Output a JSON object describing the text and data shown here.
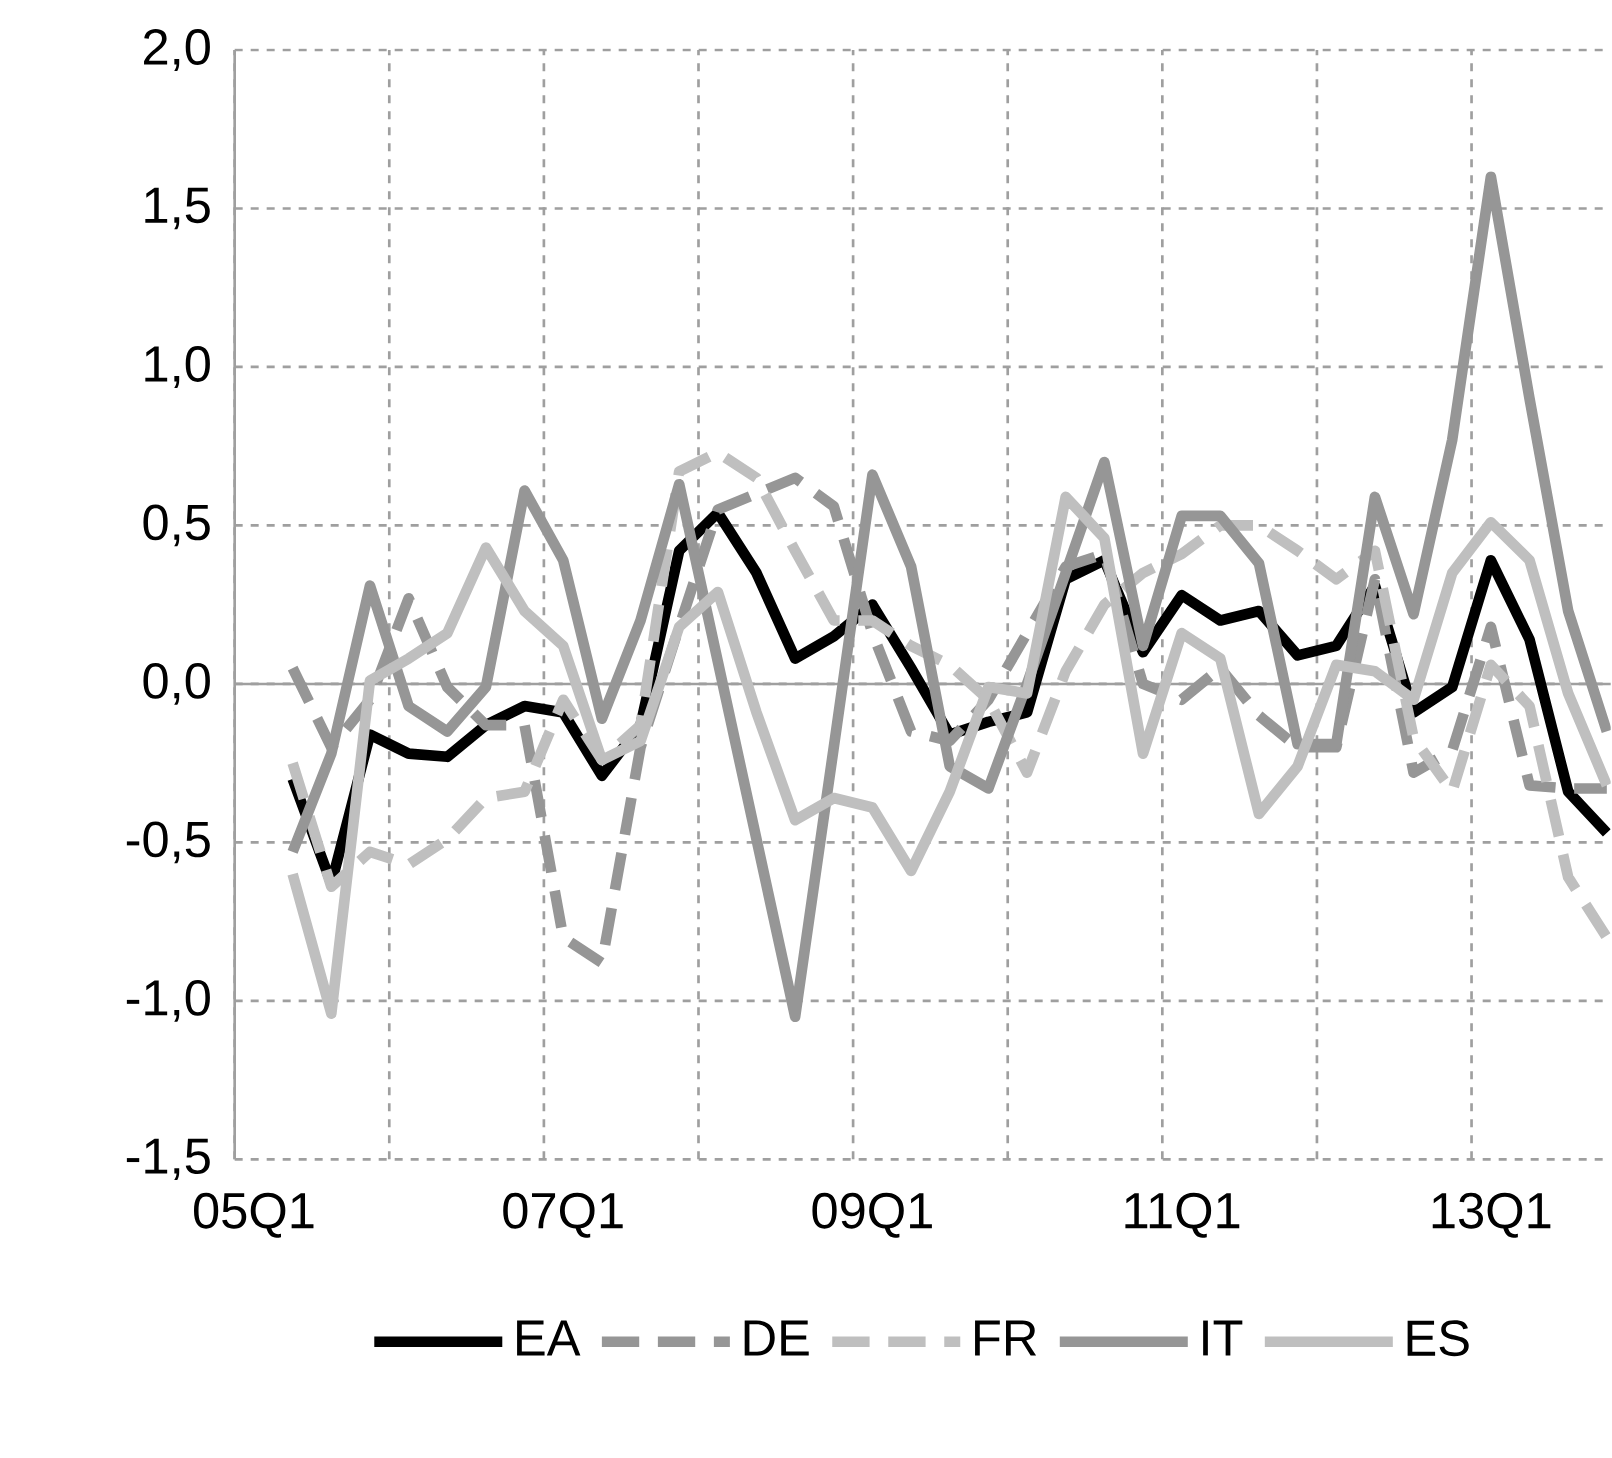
{
  "chart_data": {
    "type": "line",
    "categories": [
      "05Q1",
      null,
      null,
      null,
      null,
      null,
      null,
      null,
      "07Q1",
      null,
      null,
      null,
      null,
      null,
      null,
      null,
      "09Q1",
      null,
      null,
      null,
      null,
      null,
      null,
      null,
      "11Q1",
      null,
      null,
      null,
      null,
      null,
      null,
      null,
      "13Q1",
      null,
      null,
      null
    ],
    "series": [
      {
        "name": "EA",
        "color": "#000000",
        "line_style": "solid",
        "values": [
          null,
          -0.3,
          -0.63,
          -0.16,
          -0.22,
          -0.23,
          -0.13,
          -0.07,
          -0.09,
          -0.29,
          -0.13,
          0.42,
          0.54,
          0.35,
          0.08,
          0.15,
          0.25,
          0.05,
          -0.16,
          -0.12,
          -0.09,
          0.33,
          0.39,
          0.1,
          0.28,
          0.2,
          0.23,
          0.09,
          0.12,
          0.31,
          -0.09,
          -0.01,
          0.39,
          0.14,
          -0.34,
          -0.47
        ]
      },
      {
        "name": "DE",
        "color": "#969696",
        "line_style": "dashed",
        "values": [
          null,
          0.05,
          -0.2,
          -0.05,
          0.27,
          -0.01,
          -0.13,
          -0.13,
          -0.8,
          -0.88,
          -0.2,
          0.18,
          0.55,
          0.6,
          0.65,
          0.56,
          0.16,
          -0.15,
          -0.18,
          -0.05,
          0.16,
          0.37,
          0.41,
          0.0,
          -0.05,
          0.05,
          -0.1,
          -0.2,
          -0.2,
          0.33,
          -0.28,
          -0.21,
          0.18,
          -0.32,
          -0.33,
          -0.33
        ]
      },
      {
        "name": "FR",
        "color": "#bfbfbf",
        "line_style": "dashed",
        "values": [
          null,
          -0.25,
          -0.64,
          -0.53,
          -0.57,
          -0.49,
          -0.36,
          -0.34,
          -0.05,
          -0.24,
          -0.13,
          0.67,
          0.73,
          0.65,
          0.42,
          0.2,
          0.2,
          0.12,
          0.06,
          -0.05,
          -0.28,
          0.04,
          0.25,
          0.35,
          0.41,
          0.5,
          0.5,
          0.42,
          0.33,
          0.42,
          -0.17,
          -0.34,
          0.06,
          -0.07,
          -0.61,
          -0.8
        ]
      },
      {
        "name": "IT",
        "color": "#969696",
        "line_style": "solid",
        "values": [
          null,
          -0.53,
          -0.22,
          0.31,
          -0.07,
          -0.15,
          -0.01,
          0.61,
          0.39,
          -0.11,
          0.2,
          0.63,
          0.07,
          -0.49,
          -1.05,
          -0.2,
          0.66,
          0.37,
          -0.26,
          -0.33,
          0.0,
          0.35,
          0.7,
          0.12,
          0.53,
          0.53,
          0.38,
          -0.19,
          -0.19,
          0.59,
          0.22,
          0.77,
          1.6,
          0.9,
          0.23,
          -0.15
        ]
      },
      {
        "name": "ES",
        "color": "#bfbfbf",
        "line_style": "solid",
        "values": [
          null,
          -0.6,
          -1.04,
          0.01,
          0.08,
          0.16,
          0.43,
          0.23,
          0.12,
          -0.24,
          -0.18,
          0.18,
          0.29,
          -0.09,
          -0.43,
          -0.36,
          -0.39,
          -0.59,
          -0.34,
          -0.01,
          -0.03,
          0.59,
          0.46,
          -0.22,
          0.16,
          0.08,
          -0.41,
          -0.26,
          0.06,
          0.04,
          -0.05,
          0.35,
          0.51,
          0.39,
          -0.03,
          -0.32
        ]
      }
    ],
    "ylim": [
      -1.5,
      2.0
    ],
    "yticks": [
      {
        "value": -1.5,
        "label": "-1,5"
      },
      {
        "value": -1.0,
        "label": "-1,0"
      },
      {
        "value": -0.5,
        "label": "-0,5"
      },
      {
        "value": 0.0,
        "label": "0,0"
      },
      {
        "value": 0.5,
        "label": "0,5"
      },
      {
        "value": 1.0,
        "label": "1,0"
      },
      {
        "value": 1.5,
        "label": "1,5"
      },
      {
        "value": 2.0,
        "label": "2,0"
      }
    ],
    "grid": true,
    "legend": "bottom",
    "marker": "none"
  }
}
